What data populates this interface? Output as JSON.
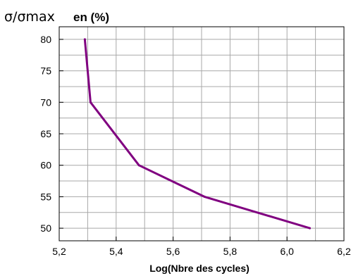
{
  "chart_data": {
    "type": "line",
    "xlabel": "Log(Nbre des cycles)",
    "ylabel": "σ/σmax",
    "ylabel_unit": "en (%)",
    "xlim": [
      5.2,
      6.2
    ],
    "ylim": [
      48,
      82
    ],
    "grid": true,
    "x_ticks": [
      "5,2",
      "5,4",
      "5,6",
      "5,8",
      "6,0",
      "6,2"
    ],
    "x_tick_values": [
      5.2,
      5.4,
      5.6,
      5.8,
      6.0,
      6.2
    ],
    "y_ticks": [
      "50",
      "55",
      "60",
      "65",
      "70",
      "75",
      "80"
    ],
    "y_tick_values": [
      50,
      55,
      60,
      65,
      70,
      75,
      80
    ],
    "series": [
      {
        "color": "#800080",
        "x": [
          5.29,
          5.31,
          5.48,
          5.71,
          6.08
        ],
        "y": [
          80,
          70,
          60,
          55,
          50
        ]
      }
    ]
  }
}
